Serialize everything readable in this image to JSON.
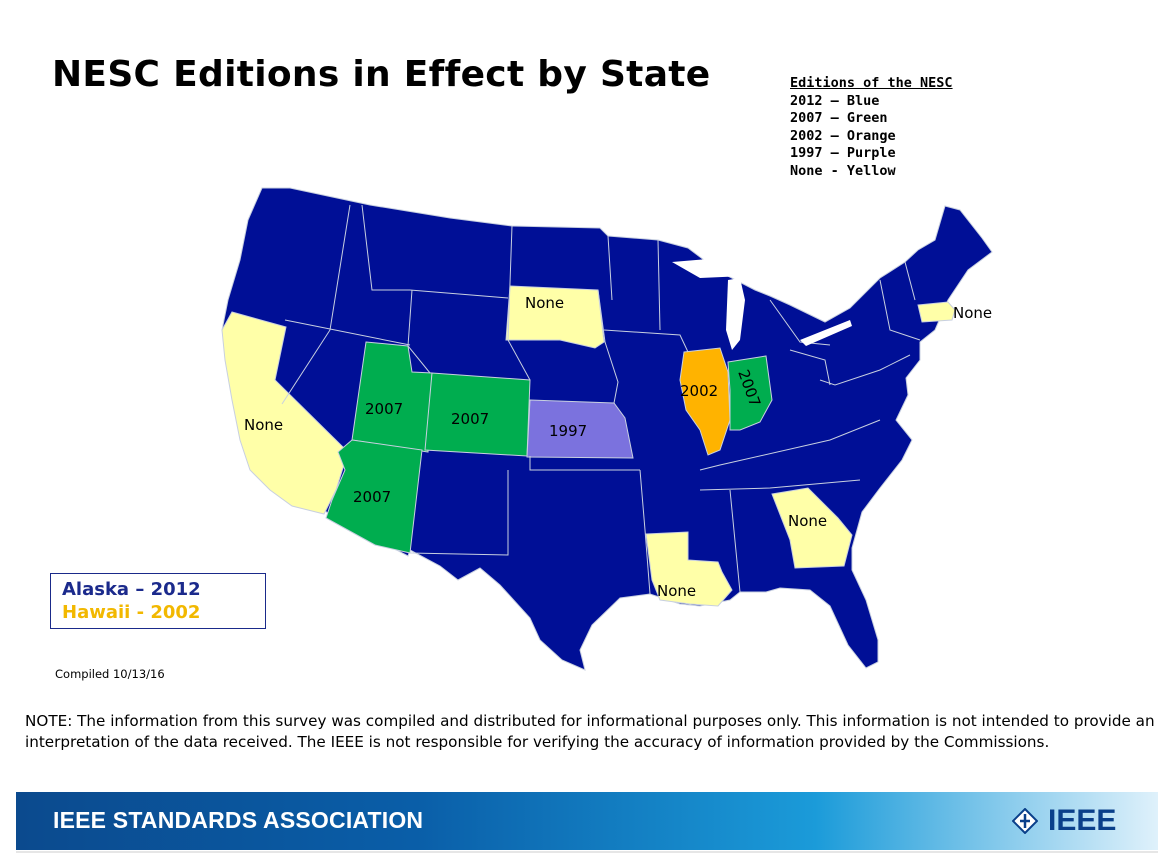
{
  "title": "NESC Editions in Effect by State",
  "legend": {
    "heading": "Editions of the NESC",
    "items": [
      "2012 – Blue",
      "2007 – Green",
      "2002 – Orange",
      "1997 – Purple",
      "None - Yellow"
    ]
  },
  "colors": {
    "blue": "#000f96",
    "green": "#00ad4f",
    "orange": "#ffb300",
    "purple": "#7b72de",
    "yellow": "#ffffa8",
    "border": "#c8d0e0"
  },
  "map_labels": {
    "south_dakota": "None",
    "massachusetts": "None",
    "california": "None",
    "utah": "2007",
    "colorado": "2007",
    "kansas": "1997",
    "illinois": "2002",
    "indiana": "2007",
    "arizona": "2007",
    "georgia": "None",
    "louisiana": "None"
  },
  "territories": {
    "alaska": "Alaska – 2012",
    "hawaii": "Hawaii - 2002"
  },
  "compiled": "Compiled 10/13/16",
  "note": "NOTE: The information from this survey was compiled and distributed for informational purposes only. This information is not intended to provide an interpretation of the data received. The IEEE is not responsible for verifying the accuracy of information provided by the Commissions.",
  "footer": {
    "brand": "IEEE STANDARDS ASSOCIATION",
    "logo": "IEEE"
  }
}
